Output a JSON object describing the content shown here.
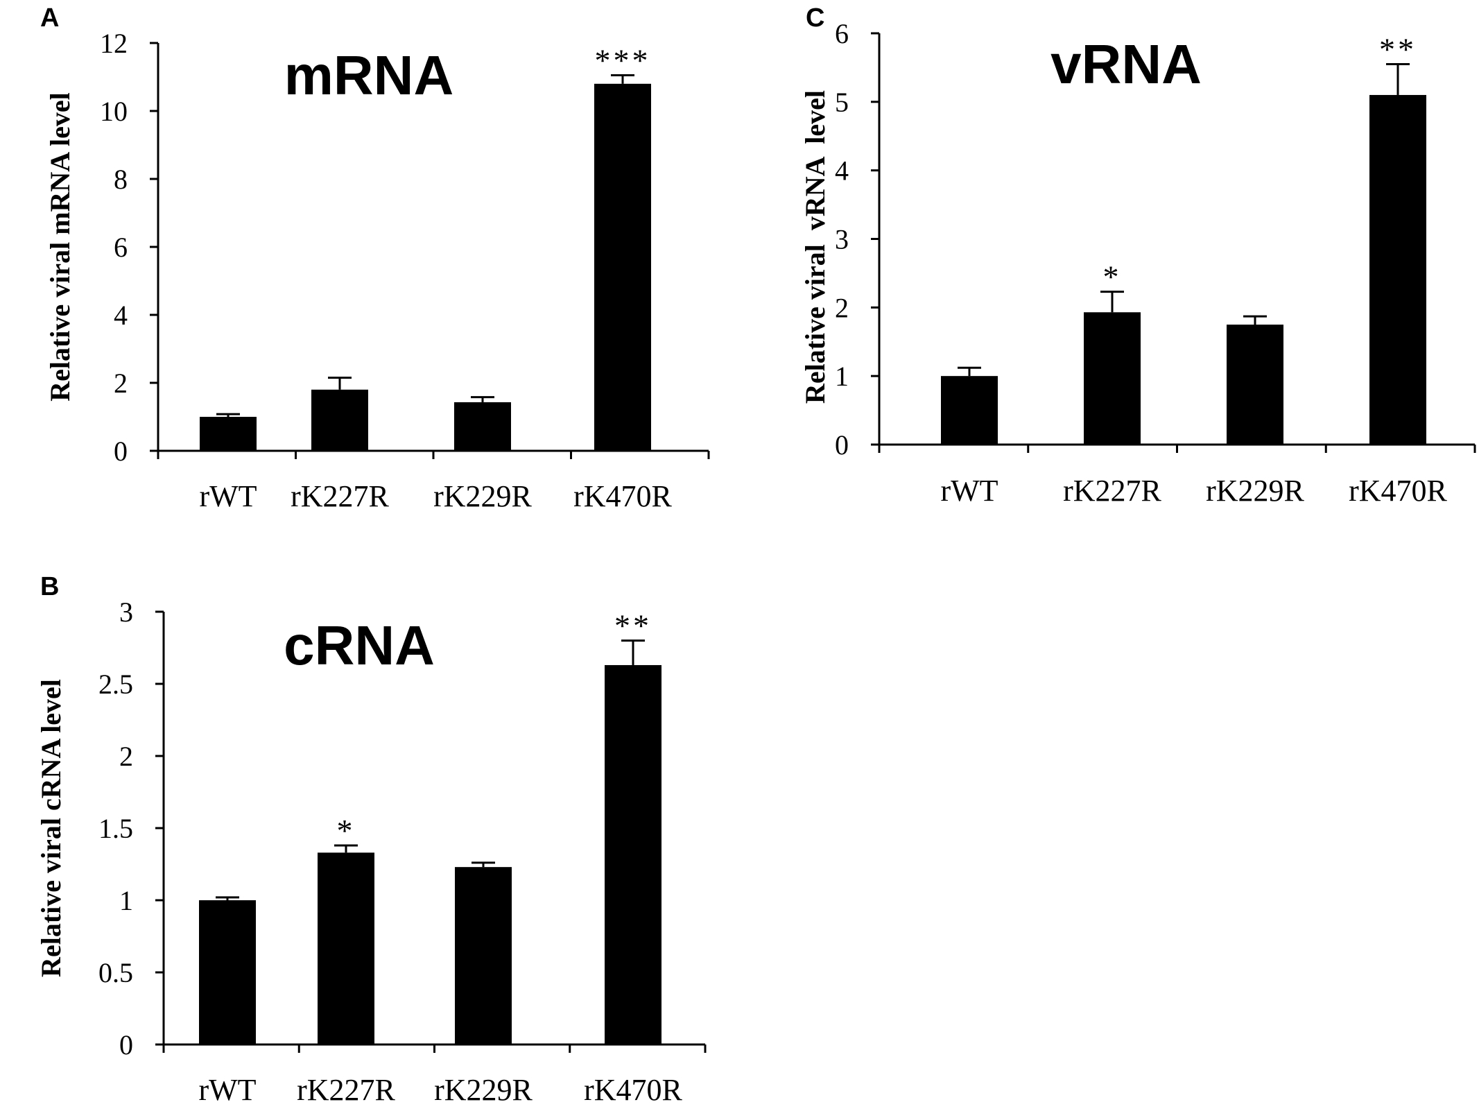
{
  "chart_data": [
    {
      "type": "bar",
      "panel": "A",
      "title": "mRNA",
      "ylabel": "Relative viral mRNA level",
      "xlabel": "",
      "ylim": [
        0,
        12
      ],
      "yticks": [
        "0",
        "2",
        "4",
        "6",
        "8",
        "10",
        "12"
      ],
      "categories": [
        "rWT",
        "rK227R",
        "rK229R",
        "rK470R"
      ],
      "values": [
        1.0,
        1.8,
        1.43,
        10.8
      ],
      "errors": [
        0.08,
        0.35,
        0.15,
        0.25
      ],
      "significance": [
        "",
        "",
        "",
        "***"
      ],
      "grid": false
    },
    {
      "type": "bar",
      "panel": "B",
      "title": "cRNA",
      "ylabel": "Relative viral cRNA level",
      "xlabel": "",
      "ylim": [
        0,
        3
      ],
      "yticks": [
        "0",
        "0.5",
        "1",
        "1.5",
        "2",
        "2.5",
        "3"
      ],
      "categories": [
        "rWT",
        "rK227R",
        "rK229R",
        "rK470R"
      ],
      "values": [
        1.0,
        1.33,
        1.23,
        2.63
      ],
      "errors": [
        0.02,
        0.05,
        0.03,
        0.17
      ],
      "significance": [
        "",
        "*",
        "",
        "**"
      ],
      "grid": false
    },
    {
      "type": "bar",
      "panel": "C",
      "title": "vRNA",
      "ylabel": "Relative viral  vRNA  level",
      "xlabel": "",
      "ylim": [
        0,
        6
      ],
      "yticks": [
        "0",
        "1",
        "2",
        "3",
        "4",
        "5",
        "6"
      ],
      "categories": [
        "rWT",
        "rK227R",
        "rK229R",
        "rK470R"
      ],
      "values": [
        1.0,
        1.93,
        1.75,
        5.1
      ],
      "errors": [
        0.12,
        0.3,
        0.12,
        0.45
      ],
      "significance": [
        "",
        "*",
        "",
        "**"
      ],
      "grid": false
    }
  ]
}
